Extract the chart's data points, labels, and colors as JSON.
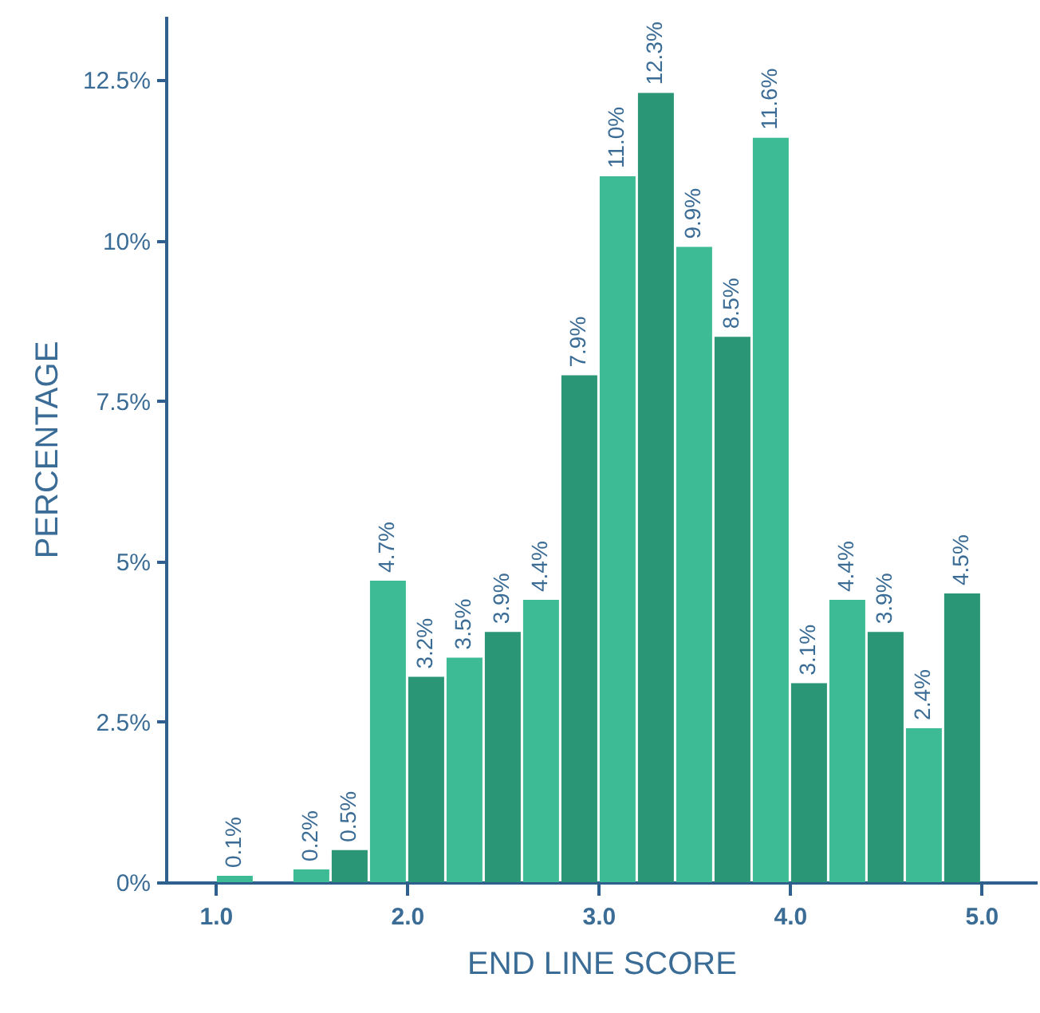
{
  "chart_data": {
    "type": "histogram",
    "xlabel": "END LINE SCORE",
    "ylabel": "PERCENTAGE",
    "bins": [
      1.0,
      1.2,
      1.4,
      1.6,
      1.8,
      2.0,
      2.2,
      2.4,
      2.6,
      2.8,
      3.0,
      3.2,
      3.4,
      3.6,
      3.8,
      4.0,
      4.2,
      4.4,
      4.6,
      4.8,
      5.0
    ],
    "values": [
      0.1,
      0,
      0.2,
      0.5,
      4.7,
      3.2,
      3.5,
      3.9,
      4.4,
      7.9,
      11.0,
      12.3,
      9.9,
      8.5,
      11.6,
      3.1,
      4.4,
      3.9,
      2.4,
      4.5
    ],
    "value_labels": [
      "0.1%",
      null,
      "0.2%",
      "0.5%",
      "4.7%",
      "3.2%",
      "3.5%",
      "3.9%",
      "4.4%",
      "7.9%",
      "11.0%",
      "12.3%",
      "9.9%",
      "8.5%",
      "11.6%",
      "3.1%",
      "4.4%",
      "3.9%",
      "2.4%",
      "4.5%"
    ],
    "colors": [
      "#3dbb94",
      "#2b9676",
      "#3dbb94",
      "#2b9676",
      "#3dbb94",
      "#2b9676",
      "#3dbb94",
      "#2b9676",
      "#3dbb94",
      "#2b9676",
      "#3dbb94",
      "#2b9676",
      "#3dbb94",
      "#2b9676",
      "#3dbb94",
      "#2b9676",
      "#3dbb94",
      "#2b9676",
      "#3dbb94",
      "#2b9676"
    ],
    "xlim": [
      0.74,
      5.29
    ],
    "ylim": [
      0,
      13.5
    ],
    "xticks": [
      {
        "value": 1,
        "label": "1.0"
      },
      {
        "value": 2,
        "label": "2.0"
      },
      {
        "value": 3,
        "label": "3.0"
      },
      {
        "value": 4,
        "label": "4.0"
      },
      {
        "value": 5,
        "label": "5.0"
      }
    ],
    "yticks": [
      {
        "value": 0,
        "label": "0%"
      },
      {
        "value": 2.5,
        "label": "2.5%"
      },
      {
        "value": 5,
        "label": "5%"
      },
      {
        "value": 7.5,
        "label": "7.5%"
      },
      {
        "value": 10,
        "label": "10%"
      },
      {
        "value": 12.5,
        "label": "12.5%"
      }
    ]
  }
}
